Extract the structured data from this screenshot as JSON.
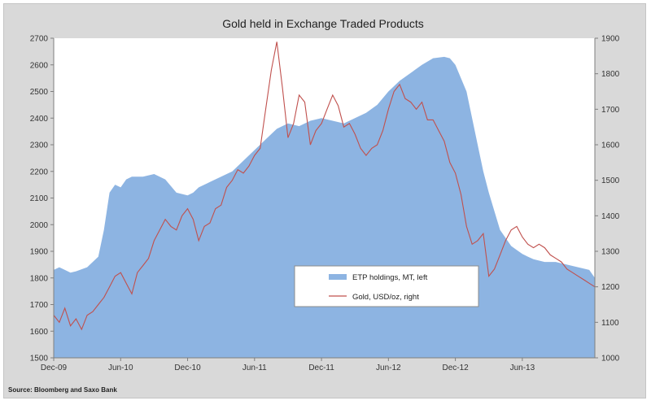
{
  "chart_data": {
    "type": "area+line",
    "title": "Gold held in Exchange Traded Products",
    "source": "Source: Bloomberg and Saxo Bank",
    "x_ticks": [
      "Dec-09",
      "Jun-10",
      "Dec-10",
      "Jun-11",
      "Dec-11",
      "Jun-12",
      "Dec-12",
      "Jun-13"
    ],
    "x_range_months": [
      0,
      48.5
    ],
    "left_axis": {
      "label": "ETP holdings, MT",
      "ylim": [
        1500,
        2700
      ],
      "ticks": [
        1500,
        1600,
        1700,
        1800,
        1900,
        2000,
        2100,
        2200,
        2300,
        2400,
        2500,
        2600,
        2700
      ]
    },
    "right_axis": {
      "label": "Gold, USD/oz",
      "ylim": [
        1000,
        1900
      ],
      "ticks": [
        1000,
        1100,
        1200,
        1300,
        1400,
        1500,
        1600,
        1700,
        1800,
        1900
      ]
    },
    "series": [
      {
        "name": "ETP holdings, MT, left",
        "axis": "left",
        "style": "area",
        "color": "#8db4e2",
        "x": [
          0,
          0.5,
          1,
          1.5,
          2,
          3,
          4,
          4.5,
          5,
          5.5,
          6,
          6.5,
          7,
          8,
          9,
          10,
          11,
          12,
          12.5,
          13,
          14,
          15,
          16,
          17,
          18,
          19,
          20,
          21,
          22,
          23,
          24,
          25,
          26,
          27,
          28,
          29,
          30,
          31,
          32,
          33,
          34,
          35,
          35.5,
          36,
          37,
          38,
          38.5,
          39,
          40,
          41,
          42,
          42.5,
          43,
          44,
          45,
          46,
          47,
          48,
          48.5
        ],
        "values": [
          1830,
          1840,
          1830,
          1820,
          1825,
          1840,
          1880,
          1980,
          2120,
          2150,
          2140,
          2170,
          2180,
          2180,
          2190,
          2170,
          2120,
          2110,
          2120,
          2140,
          2160,
          2180,
          2200,
          2240,
          2280,
          2320,
          2360,
          2380,
          2370,
          2390,
          2400,
          2390,
          2380,
          2400,
          2420,
          2450,
          2500,
          2540,
          2570,
          2600,
          2625,
          2630,
          2625,
          2600,
          2500,
          2300,
          2200,
          2120,
          1980,
          1920,
          1890,
          1880,
          1870,
          1860,
          1860,
          1850,
          1840,
          1830,
          1800
        ]
      },
      {
        "name": "Gold, USD/oz, right",
        "axis": "right",
        "style": "line",
        "color": "#c0504d",
        "x": [
          0,
          0.5,
          1,
          1.5,
          2,
          2.5,
          3,
          3.5,
          4,
          4.5,
          5,
          5.5,
          6,
          6.5,
          7,
          7.5,
          8,
          8.5,
          9,
          9.5,
          10,
          10.5,
          11,
          11.5,
          12,
          12.5,
          13,
          13.5,
          14,
          14.5,
          15,
          15.5,
          16,
          16.5,
          17,
          17.5,
          18,
          18.5,
          19,
          19.5,
          20,
          20.5,
          21,
          21.5,
          22,
          22.5,
          23,
          23.5,
          24,
          24.5,
          25,
          25.5,
          26,
          26.5,
          27,
          27.5,
          28,
          28.5,
          29,
          29.5,
          30,
          30.5,
          31,
          31.5,
          32,
          32.5,
          33,
          33.5,
          34,
          34.5,
          35,
          35.5,
          36,
          36.5,
          37,
          37.5,
          38,
          38.5,
          39,
          39.5,
          40,
          40.5,
          41,
          41.5,
          42,
          42.5,
          43,
          43.5,
          44,
          44.5,
          45,
          45.5,
          46,
          46.5,
          47,
          47.5,
          48,
          48.5
        ],
        "values": [
          1120,
          1100,
          1140,
          1090,
          1110,
          1080,
          1120,
          1130,
          1150,
          1170,
          1200,
          1230,
          1240,
          1210,
          1180,
          1240,
          1260,
          1280,
          1330,
          1360,
          1390,
          1370,
          1360,
          1400,
          1420,
          1390,
          1330,
          1370,
          1380,
          1420,
          1430,
          1480,
          1500,
          1530,
          1520,
          1540,
          1570,
          1590,
          1700,
          1810,
          1890,
          1760,
          1620,
          1660,
          1740,
          1720,
          1600,
          1640,
          1660,
          1700,
          1740,
          1710,
          1650,
          1660,
          1630,
          1590,
          1570,
          1590,
          1600,
          1640,
          1700,
          1750,
          1770,
          1730,
          1720,
          1700,
          1720,
          1670,
          1670,
          1640,
          1610,
          1550,
          1520,
          1460,
          1370,
          1320,
          1330,
          1350,
          1230,
          1250,
          1290,
          1330,
          1360,
          1370,
          1340,
          1320,
          1310,
          1320,
          1310,
          1290,
          1280,
          1270,
          1250,
          1240,
          1230,
          1220,
          1210,
          1200
        ]
      }
    ],
    "legend": {
      "position": "center-right-lower",
      "entries": [
        "ETP holdings, MT, left",
        "Gold, USD/oz, right"
      ]
    }
  }
}
